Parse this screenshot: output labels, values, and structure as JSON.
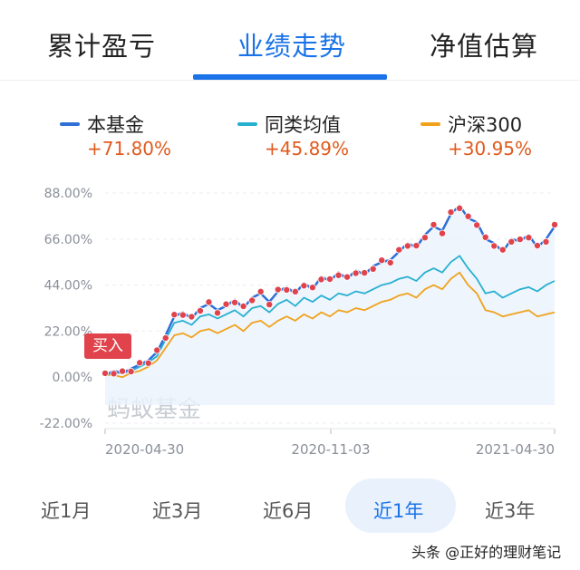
{
  "tabs": [
    {
      "label": "累计盈亏"
    },
    {
      "label": "业绩走势"
    },
    {
      "label": "净值估算"
    }
  ],
  "active_tab": "业绩走势",
  "legend": [
    {
      "name": "本基金",
      "value": "+71.80%",
      "color": "#2f6fd6"
    },
    {
      "name": "同类均值",
      "value": "+45.89%",
      "color": "#27b0d0"
    },
    {
      "name": "沪深300",
      "value": "+30.95%",
      "color": "#f0a21c"
    }
  ],
  "buy_badge": "买入",
  "watermark": "蚂蚁基金",
  "chart_data": {
    "type": "line",
    "y_ticks": [
      "88.00%",
      "66.00%",
      "44.00%",
      "22.00%",
      "0.00%",
      "-22.00%"
    ],
    "ylim": [
      -22,
      88
    ],
    "x_ticks": [
      "2020-04-30",
      "2020-11-03",
      "2021-04-30"
    ],
    "x": [
      0,
      1,
      2,
      3,
      4,
      5,
      6,
      7,
      8,
      9,
      10,
      11,
      12,
      13,
      14,
      15,
      16,
      17,
      18,
      19,
      20,
      21,
      22,
      23,
      24,
      25,
      26,
      27,
      28,
      29,
      30,
      31,
      32,
      33,
      34,
      35,
      36,
      37,
      38,
      39,
      40,
      41,
      42,
      43,
      44,
      45,
      46,
      47,
      48,
      49,
      50,
      51,
      52
    ],
    "series": [
      {
        "name": "本基金",
        "values": [
          1,
          3,
          2,
          4,
          6,
          8,
          12,
          20,
          29,
          31,
          28,
          33,
          35,
          32,
          34,
          37,
          33,
          38,
          40,
          36,
          41,
          43,
          40,
          45,
          42,
          48,
          46,
          50,
          47,
          51,
          49,
          53,
          55,
          56,
          60,
          64,
          62,
          68,
          72,
          70,
          78,
          82,
          76,
          74,
          66,
          64,
          60,
          66,
          65,
          68,
          62,
          66,
          72
        ]
      },
      {
        "name": "同类均值",
        "values": [
          1,
          2,
          2,
          3,
          5,
          7,
          10,
          18,
          26,
          27,
          25,
          29,
          30,
          28,
          30,
          32,
          29,
          33,
          34,
          31,
          35,
          37,
          34,
          38,
          36,
          39,
          37,
          40,
          39,
          41,
          40,
          42,
          44,
          45,
          47,
          48,
          46,
          50,
          52,
          50,
          55,
          58,
          52,
          47,
          40,
          41,
          38,
          40,
          42,
          43,
          41,
          44,
          46
        ]
      },
      {
        "name": "沪深300",
        "values": [
          1,
          1,
          0,
          2,
          3,
          5,
          8,
          14,
          20,
          21,
          19,
          22,
          23,
          21,
          23,
          25,
          22,
          26,
          27,
          24,
          27,
          29,
          27,
          30,
          28,
          31,
          29,
          32,
          31,
          33,
          32,
          34,
          36,
          37,
          39,
          40,
          38,
          42,
          44,
          42,
          47,
          50,
          44,
          40,
          32,
          31,
          29,
          30,
          31,
          32,
          29,
          30,
          31
        ]
      }
    ]
  },
  "ranges": [
    {
      "label": "近1月"
    },
    {
      "label": "近3月"
    },
    {
      "label": "近6月"
    },
    {
      "label": "近1年"
    },
    {
      "label": "近3年"
    }
  ],
  "active_range": "近1年",
  "footer_text": "头条 @正好的理财笔记"
}
